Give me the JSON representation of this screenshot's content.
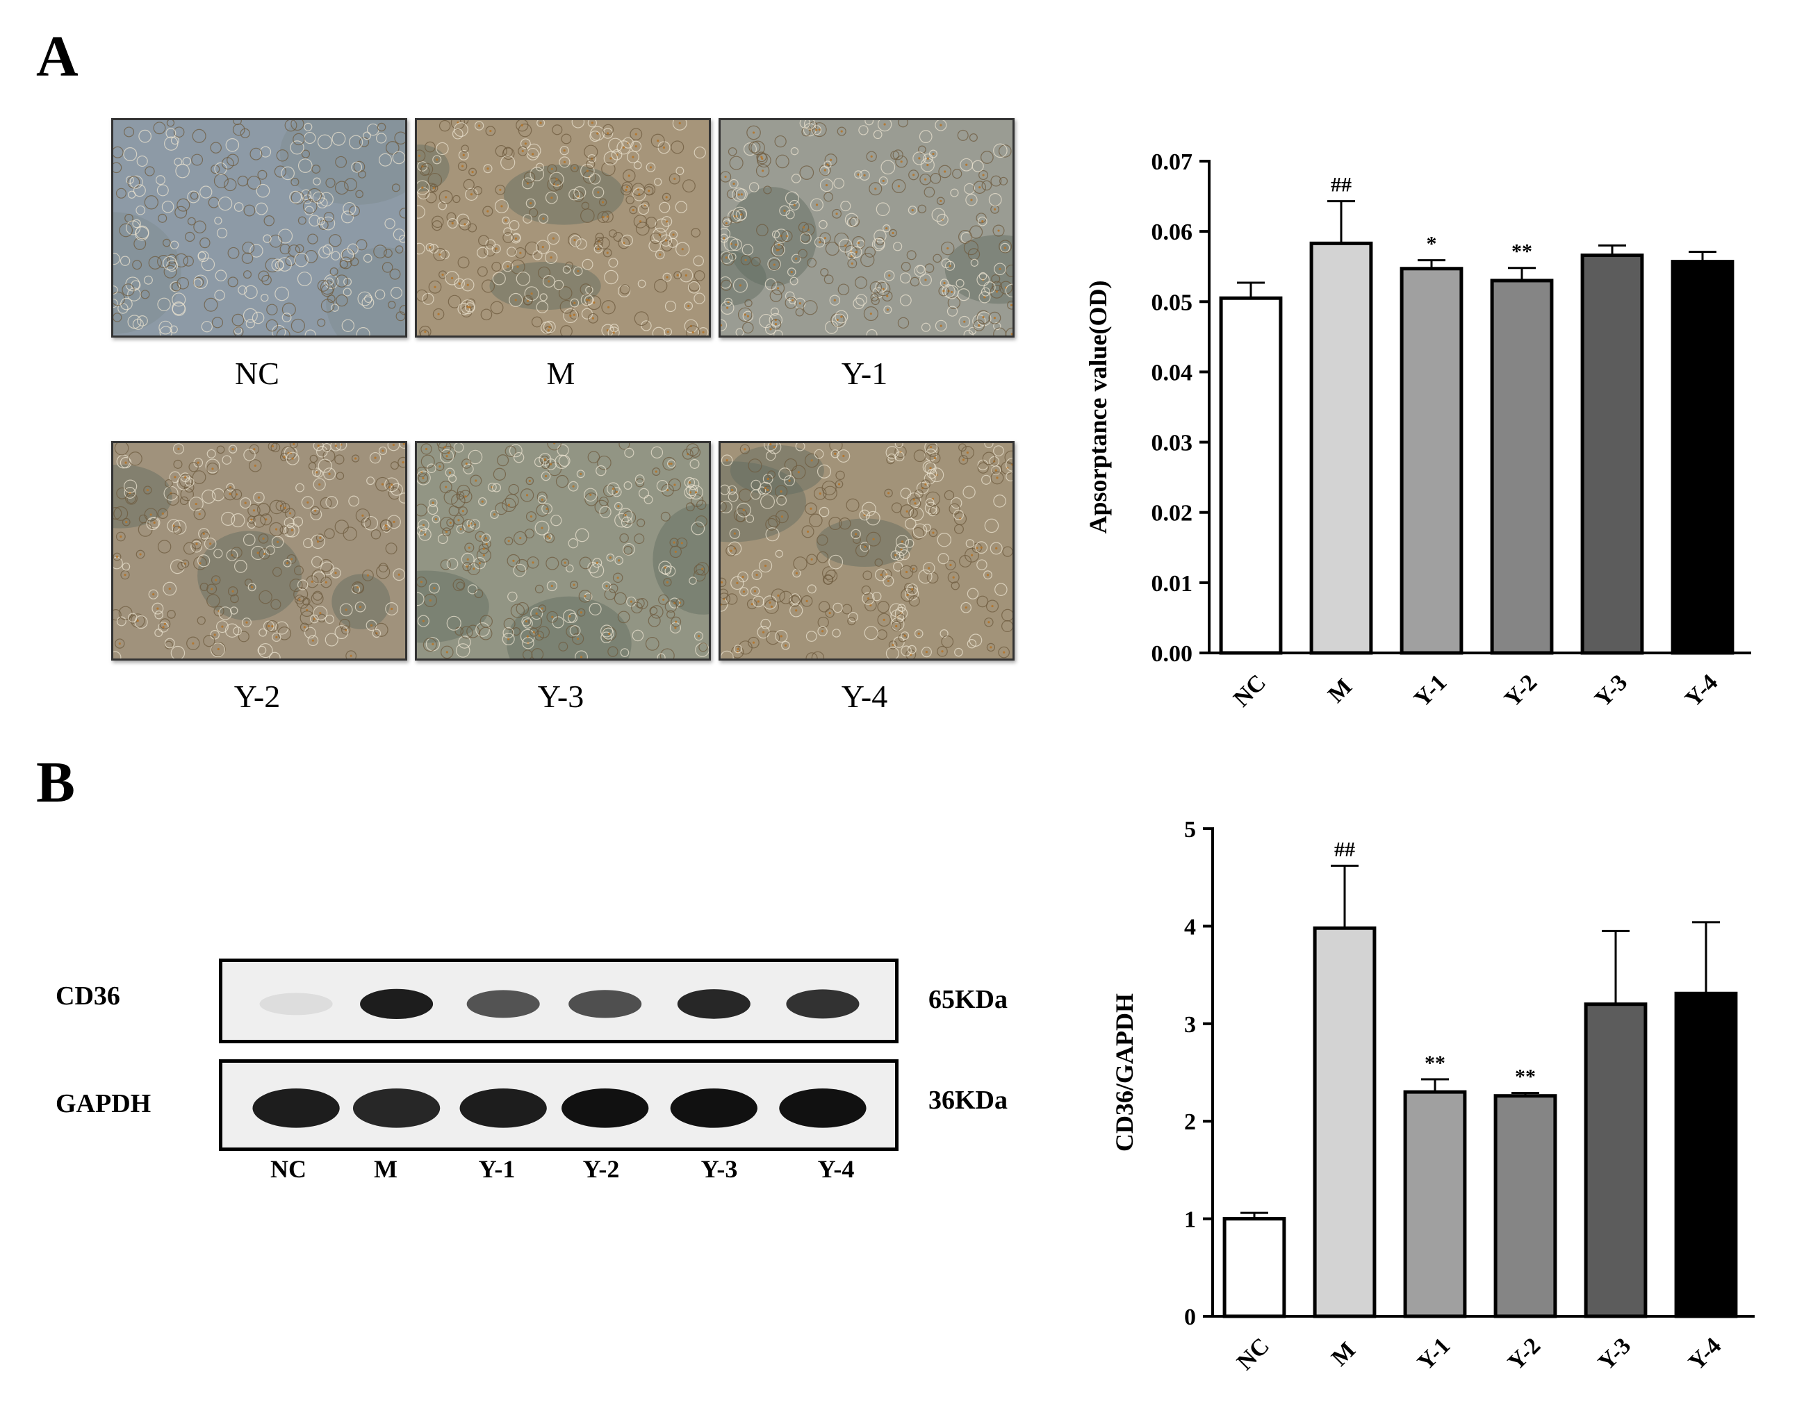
{
  "panels": {
    "a_label": "A",
    "b_label": "B"
  },
  "micrographs": [
    {
      "label": "NC",
      "tint": "#8d9aa6"
    },
    {
      "label": "M",
      "tint": "#a6957a"
    },
    {
      "label": "Y-1",
      "tint": "#9a9c93"
    },
    {
      "label": "Y-2",
      "tint": "#a0927c"
    },
    {
      "label": "Y-3",
      "tint": "#929584"
    },
    {
      "label": "Y-4",
      "tint": "#a29379"
    }
  ],
  "western_blot": {
    "rows": [
      {
        "protein": "CD36",
        "kda": "65KDa",
        "intensities": [
          0.08,
          0.95,
          0.7,
          0.72,
          0.9,
          0.85
        ]
      },
      {
        "protein": "GAPDH",
        "kda": "36KDa",
        "intensities": [
          0.95,
          0.9,
          0.95,
          1.0,
          1.0,
          1.0
        ]
      }
    ],
    "lanes": [
      "NC",
      "M",
      "Y-1",
      "Y-2",
      "Y-3",
      "Y-4"
    ]
  },
  "chart_data": [
    {
      "type": "bar",
      "categories": [
        "NC",
        "M",
        "Y-1",
        "Y-2",
        "Y-3",
        "Y-4"
      ],
      "values": [
        0.0505,
        0.0583,
        0.0547,
        0.053,
        0.0566,
        0.0557
      ],
      "errors": [
        0.0022,
        0.006,
        0.0012,
        0.0018,
        0.0014,
        0.0014
      ],
      "annotations": [
        "",
        "##",
        "*",
        "**",
        "",
        ""
      ],
      "colors": [
        "#ffffff",
        "#d3d3d3",
        "#a0a0a0",
        "#858585",
        "#5c5c5c",
        "#000000"
      ],
      "ylabel": "Apsorptance value(OD)",
      "ylim": [
        0,
        0.07
      ],
      "yticks": [
        "0.00",
        "0.01",
        "0.02",
        "0.03",
        "0.04",
        "0.05",
        "0.06",
        "0.07"
      ]
    },
    {
      "type": "bar",
      "categories": [
        "NC",
        "M",
        "Y-1",
        "Y-2",
        "Y-3",
        "Y-4"
      ],
      "values": [
        1.0,
        3.98,
        2.3,
        2.26,
        3.2,
        3.31
      ],
      "errors": [
        0.06,
        0.64,
        0.13,
        0.03,
        0.75,
        0.73
      ],
      "annotations": [
        "",
        "##",
        "**",
        "**",
        "",
        ""
      ],
      "colors": [
        "#ffffff",
        "#d3d3d3",
        "#a0a0a0",
        "#858585",
        "#5c5c5c",
        "#000000"
      ],
      "ylabel": "CD36/GAPDH",
      "ylim": [
        0,
        5
      ],
      "yticks": [
        "0",
        "1",
        "2",
        "3",
        "4",
        "5"
      ]
    }
  ]
}
